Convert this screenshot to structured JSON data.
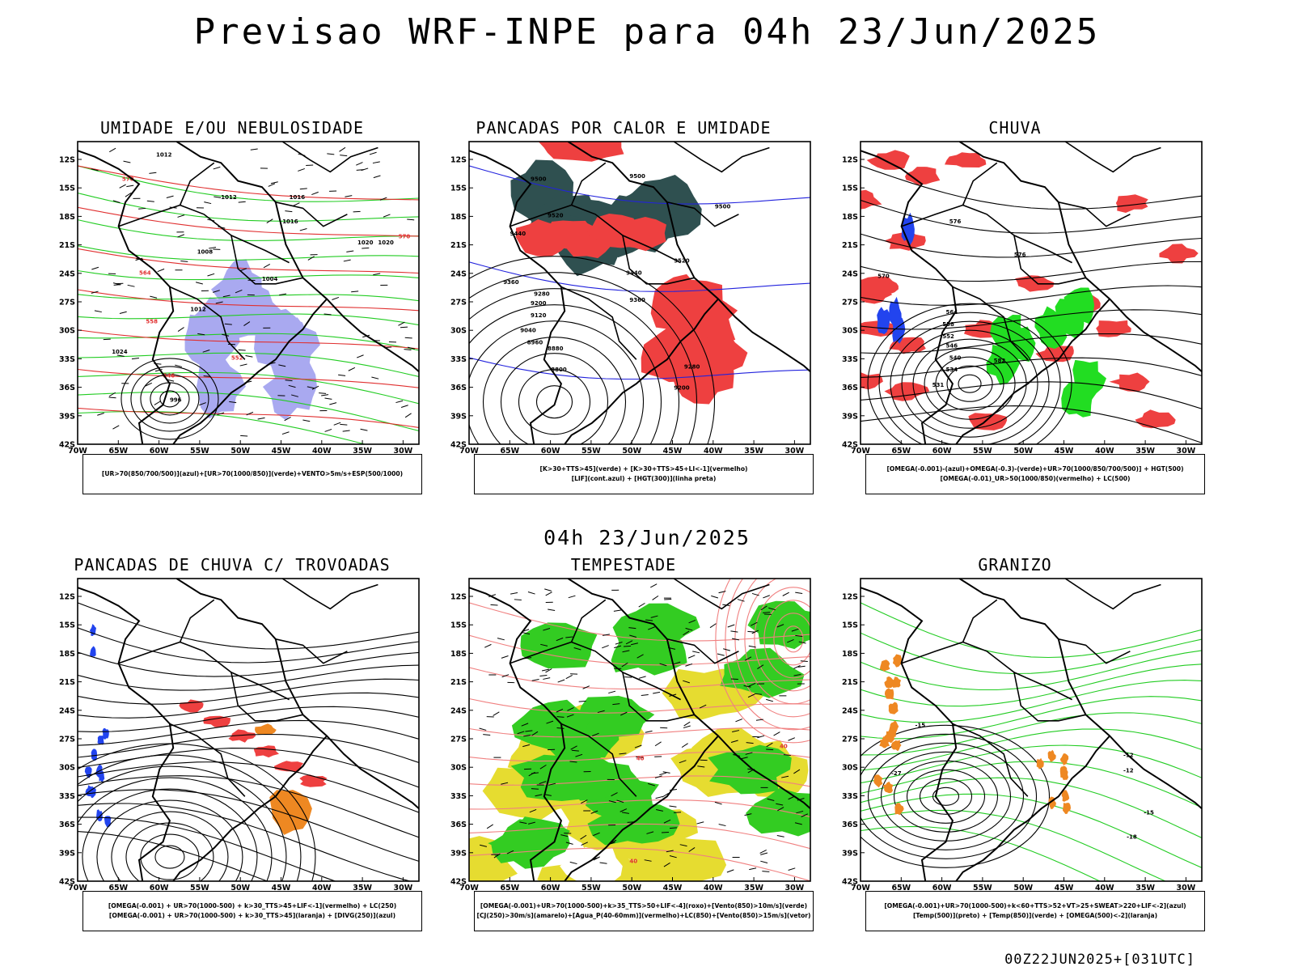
{
  "header": {
    "title": "Previsao WRF-INPE  para 04h 23/Jun/2025",
    "subtitle": "04h 23/Jun/2025",
    "footer": "00Z22JUN2025+[031UTC]"
  },
  "axes": {
    "lat_labels": [
      "12S",
      "15S",
      "18S",
      "21S",
      "24S",
      "27S",
      "30S",
      "33S",
      "36S",
      "39S",
      "42S"
    ],
    "lon_labels": [
      "70W",
      "65W",
      "60W",
      "55W",
      "50W",
      "45W",
      "40W",
      "35W",
      "30W"
    ]
  },
  "panels": [
    {
      "id": "umidade",
      "title": "UMIDADE E/OU NEBULOSIDADE",
      "legend": [
        "[UR>70(850/700/500)](azul)+[UR>70(1000/850)](verde)+VENTO>5m/s+ESP(500/1000)"
      ],
      "contour_labels": [
        "1012",
        "1012",
        "1016",
        "1016",
        "1020",
        "1008",
        "1004",
        "1012",
        "1020",
        "1024",
        "996",
        "570",
        "564",
        "558",
        "552",
        "546",
        "570"
      ]
    },
    {
      "id": "pancadas-calor",
      "title": "PANCADAS POR CALOR E UMIDADE",
      "legend": [
        "[K>30+TTS>45](verde) + [K>30+TTS>45+LI<-1](vermelho)",
        "[LIF](cont.azul) + [HGT(300)](linha preta)"
      ],
      "contour_labels": [
        "9500",
        "9500",
        "9500",
        "9520",
        "9440",
        "9440",
        "9360",
        "9280",
        "9200",
        "9120",
        "9040",
        "8960",
        "8880",
        "8800",
        "9520",
        "9280",
        "9200",
        "9360"
      ]
    },
    {
      "id": "chuva",
      "title": "CHUVA",
      "legend": [
        "[OMEGA(-0.001)-(azul)+OMEGA(-0.3)-(verde)+UR>70(1000/850/700/500)] + HGT(500)",
        "[OMEGA(-0.01)_UR>50(1000/850)(vermelho) + LC(500)"
      ],
      "contour_labels": [
        "576",
        "576",
        "570",
        "564",
        "558",
        "552",
        "546",
        "540",
        "534",
        "531",
        "582"
      ]
    },
    {
      "id": "trovoadas",
      "title": "PANCADAS DE CHUVA C/ TROVOADAS",
      "legend": [
        "[OMEGA(-0.001) + UR>70(1000-500) + k>30_TTS>45+LIF<-1](vermelho) + LC(250)",
        "[OMEGA(-0.001) + UR>70(1000-500) + k>30_TTS>45](laranja) + [DIVG(250)](azul)"
      ],
      "contour_labels": []
    },
    {
      "id": "tempestade",
      "title": "TEMPESTADE",
      "legend": [
        "[OMEGA(-0.001)+UR>70(1000-500)+k>35_TTS>50+LIF<-4](roxo)+[Vento(850)>10m/s](verde)",
        "[CJ(250)>30m/s](amarelo)+[Agua_P(40-60mm)](vermelho)+LC(850)+[Vento(850)>15m/s](vetor)"
      ],
      "contour_labels": [
        "40",
        "40",
        "40"
      ]
    },
    {
      "id": "granizo",
      "title": "GRANIZO",
      "legend": [
        "[OMEGA(-0.001)+UR>70(1000-500)+k<60+TTS>52+VT>25+SWEAT>220+LIF<-2](azul)",
        "[Temp(500)](preto) + [Temp(850)](verde) + [OMEGA(500)<-2](laranja)"
      ],
      "contour_labels": [
        "-15",
        "-12",
        "-27",
        "-12",
        "-15",
        "-18"
      ]
    }
  ]
}
